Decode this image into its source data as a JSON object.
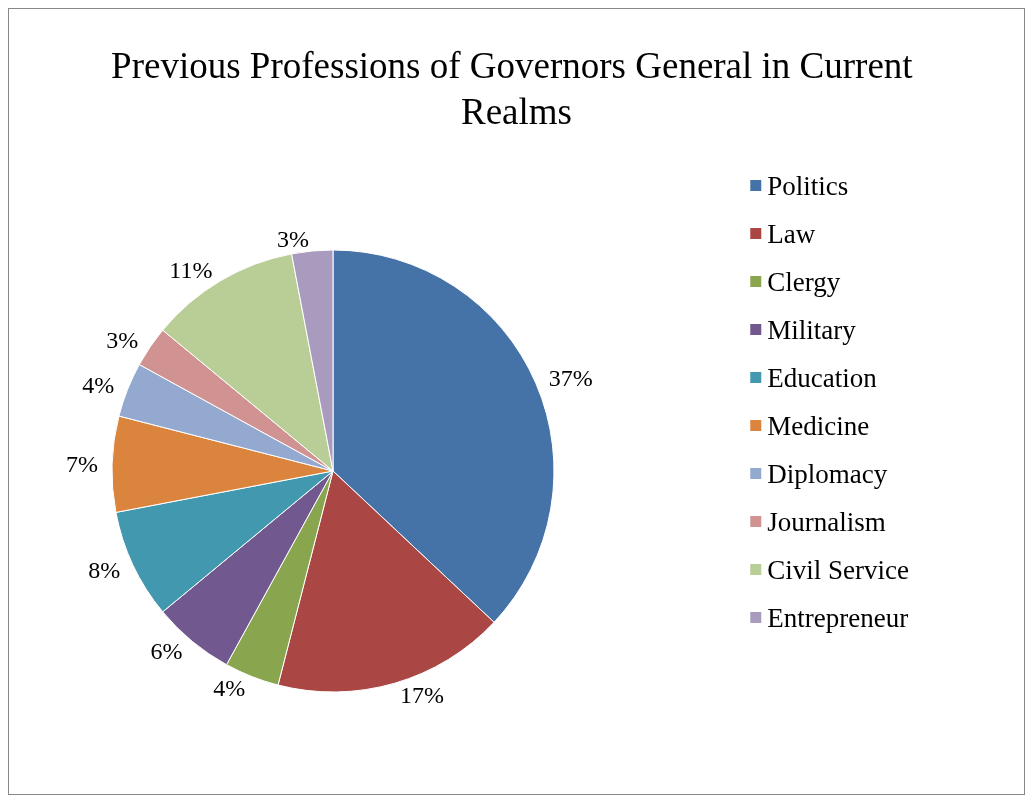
{
  "chart_data": {
    "type": "pie",
    "title": "Previous Professions of Governors General in Current Realms",
    "categories": [
      "Politics",
      "Law",
      "Clergy",
      "Military",
      "Education",
      "Medicine",
      "Diplomacy",
      "Journalism",
      "Civil Service",
      "Entrepreneur"
    ],
    "values": [
      37,
      17,
      4,
      6,
      8,
      7,
      4,
      3,
      11,
      3
    ],
    "value_labels": [
      "37%",
      "17%",
      "4%",
      "6%",
      "8%",
      "7%",
      "4%",
      "3%",
      "11%",
      "3%"
    ],
    "colors": [
      "#4572a7",
      "#aa4643",
      "#89a54e",
      "#71588f",
      "#4198af",
      "#db843d",
      "#93a9cf",
      "#d19392",
      "#b9cd96",
      "#a99bbd"
    ],
    "legend": "right"
  }
}
